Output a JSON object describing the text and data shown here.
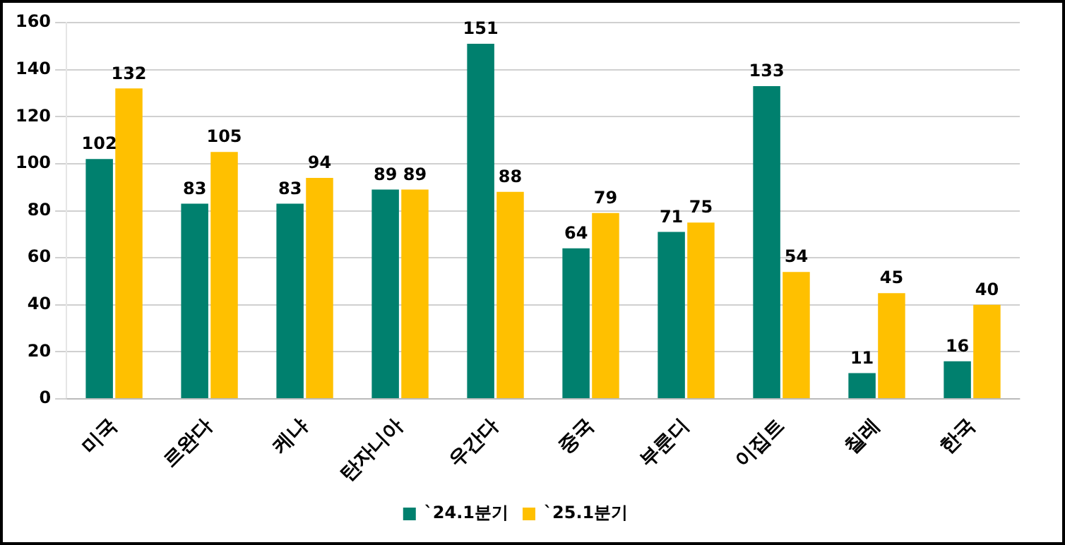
{
  "chart_data": {
    "type": "bar",
    "categories": [
      "미국",
      "르완다",
      "케냐",
      "탄자니아",
      "우간다",
      "중국",
      "부룬디",
      "이집트",
      "칠레",
      "한국"
    ],
    "series": [
      {
        "name": "`24.1분기",
        "color": "#00806e",
        "values": [
          102,
          83,
          83,
          89,
          151,
          64,
          71,
          133,
          11,
          16
        ]
      },
      {
        "name": "`25.1분기",
        "color": "#ffc000",
        "values": [
          132,
          105,
          94,
          89,
          88,
          79,
          75,
          54,
          45,
          40
        ]
      }
    ],
    "ylim": [
      0,
      160
    ],
    "yticks": [
      0,
      20,
      40,
      60,
      80,
      100,
      120,
      140,
      160
    ],
    "grid": "y",
    "legend": "bottom",
    "data_labels": true
  }
}
